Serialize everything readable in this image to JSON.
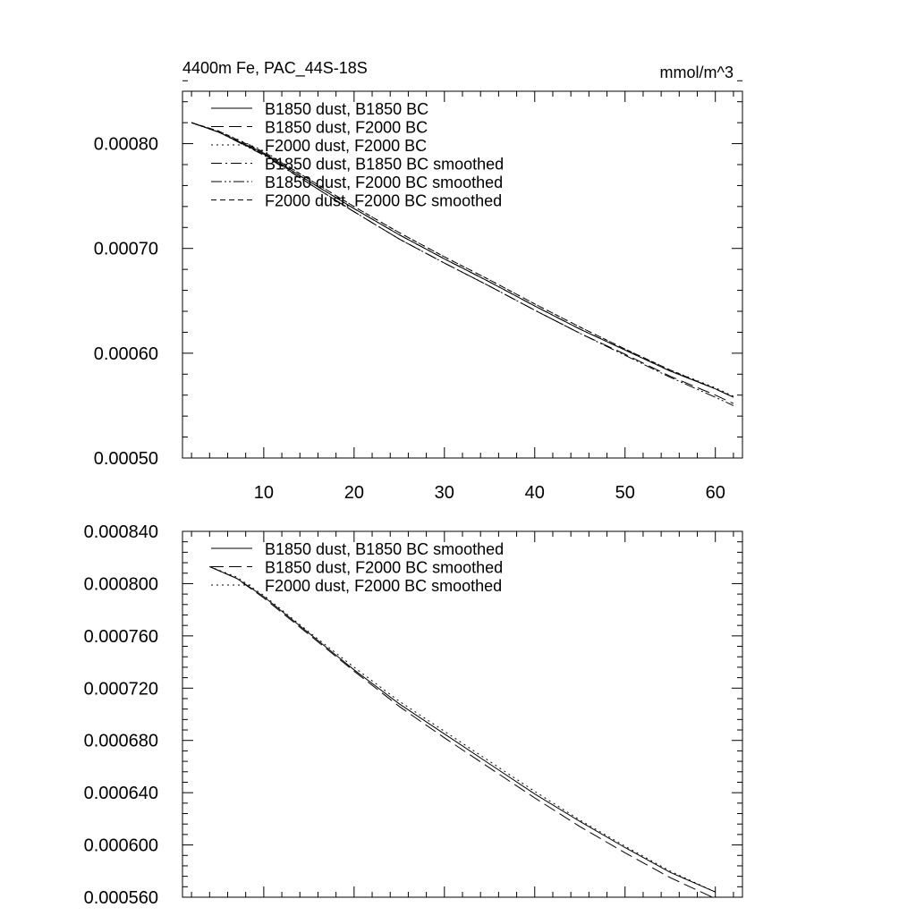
{
  "chart_data": [
    {
      "type": "line",
      "title": "4400m Fe, PAC_44S-18S",
      "units": "mmol/m^3",
      "xlim": [
        1,
        63
      ],
      "ylim": [
        0.0005,
        0.00085
      ],
      "xticks": [
        "10",
        "20",
        "30",
        "40",
        "50",
        "60"
      ],
      "yticks": [
        "0.00050",
        "0.00060",
        "0.00070",
        "0.00080"
      ],
      "legend_position": "top-left",
      "series": [
        {
          "name": "B1850 dust, B1850 BC",
          "style": "solid",
          "x": [
            2,
            5,
            10,
            15,
            20,
            25,
            30,
            35,
            40,
            45,
            50,
            55,
            60,
            62
          ],
          "y": [
            0.00082,
            0.000811,
            0.000791,
            0.000764,
            0.000738,
            0.000713,
            0.00069,
            0.000668,
            0.000645,
            0.000623,
            0.000603,
            0.000583,
            0.000566,
            0.000558
          ]
        },
        {
          "name": "B1850 dust, F2000 BC",
          "style": "longdash",
          "x": [
            2,
            5,
            10,
            15,
            20,
            25,
            30,
            35,
            40,
            45,
            50,
            55,
            60,
            62
          ],
          "y": [
            0.00082,
            0.000811,
            0.00079,
            0.000762,
            0.000735,
            0.000709,
            0.000686,
            0.000664,
            0.000641,
            0.000619,
            0.000599,
            0.000578,
            0.00056,
            0.000552
          ]
        },
        {
          "name": "F2000 dust, F2000 BC",
          "style": "dotted",
          "x": [
            2,
            5,
            10,
            15,
            20,
            25,
            30,
            35,
            40,
            45,
            50,
            55,
            60,
            62
          ],
          "y": [
            0.00082,
            0.000812,
            0.000793,
            0.000766,
            0.00074,
            0.000715,
            0.000692,
            0.00067,
            0.000647,
            0.000625,
            0.000604,
            0.000584,
            0.000567,
            0.000559
          ]
        },
        {
          "name": "B1850 dust, B1850 BC smoothed",
          "style": "dashdot",
          "x": [
            2,
            5,
            10,
            15,
            20,
            25,
            30,
            35,
            40,
            45,
            50,
            55,
            60,
            62
          ],
          "y": [
            0.00082,
            0.000811,
            0.00079,
            0.000764,
            0.000738,
            0.000713,
            0.00069,
            0.000668,
            0.000645,
            0.000623,
            0.000603,
            0.000583,
            0.000566,
            0.000558
          ]
        },
        {
          "name": "B1850 dust, F2000 BC smoothed",
          "style": "dashdotdot",
          "x": [
            2,
            5,
            10,
            15,
            20,
            25,
            30,
            35,
            40,
            45,
            50,
            55,
            60,
            62
          ],
          "y": [
            0.00082,
            0.000811,
            0.000789,
            0.000762,
            0.000735,
            0.000709,
            0.000686,
            0.000664,
            0.000641,
            0.000619,
            0.000598,
            0.000577,
            0.000558,
            0.00055
          ]
        },
        {
          "name": "F2000 dust, F2000 BC smoothed",
          "style": "shortdash",
          "x": [
            2,
            5,
            10,
            15,
            20,
            25,
            30,
            35,
            40,
            45,
            50,
            55,
            60,
            62
          ],
          "y": [
            0.00082,
            0.000812,
            0.000792,
            0.000766,
            0.00074,
            0.000715,
            0.000692,
            0.00067,
            0.000647,
            0.000625,
            0.000604,
            0.000584,
            0.000566,
            0.000558
          ]
        }
      ]
    },
    {
      "type": "line",
      "title": "",
      "xlim": [
        1,
        63
      ],
      "ylim": [
        0.00056,
        0.00084
      ],
      "yticks": [
        "0.000560",
        "0.000600",
        "0.000640",
        "0.000680",
        "0.000720",
        "0.000760",
        "0.000800",
        "0.000840"
      ],
      "legend_position": "top-left",
      "series": [
        {
          "name": "B1850 dust, B1850 BC smoothed",
          "style": "solid",
          "x": [
            4,
            7,
            10,
            15,
            20,
            25,
            30,
            35,
            40,
            45,
            50,
            55,
            60
          ],
          "y": [
            0.000813,
            0.000804,
            0.00079,
            0.000762,
            0.000734,
            0.000708,
            0.000685,
            0.000662,
            0.000639,
            0.000618,
            0.000598,
            0.000579,
            0.000564
          ]
        },
        {
          "name": "B1850 dust, F2000 BC smoothed",
          "style": "longdash",
          "x": [
            4,
            7,
            10,
            15,
            20,
            25,
            30,
            35,
            40,
            45,
            50,
            55,
            60
          ],
          "y": [
            0.000813,
            0.000804,
            0.000789,
            0.000761,
            0.000733,
            0.000706,
            0.000682,
            0.000659,
            0.000636,
            0.000614,
            0.000594,
            0.000575,
            0.000559
          ]
        },
        {
          "name": "F2000 dust, F2000 BC smoothed",
          "style": "dotted",
          "x": [
            4,
            7,
            10,
            15,
            20,
            25,
            30,
            35,
            40,
            45,
            50,
            55,
            60
          ],
          "y": [
            0.000813,
            0.000805,
            0.000791,
            0.000763,
            0.000736,
            0.00071,
            0.000687,
            0.000664,
            0.000641,
            0.000619,
            0.000599,
            0.00058,
            0.000564
          ]
        }
      ]
    }
  ]
}
